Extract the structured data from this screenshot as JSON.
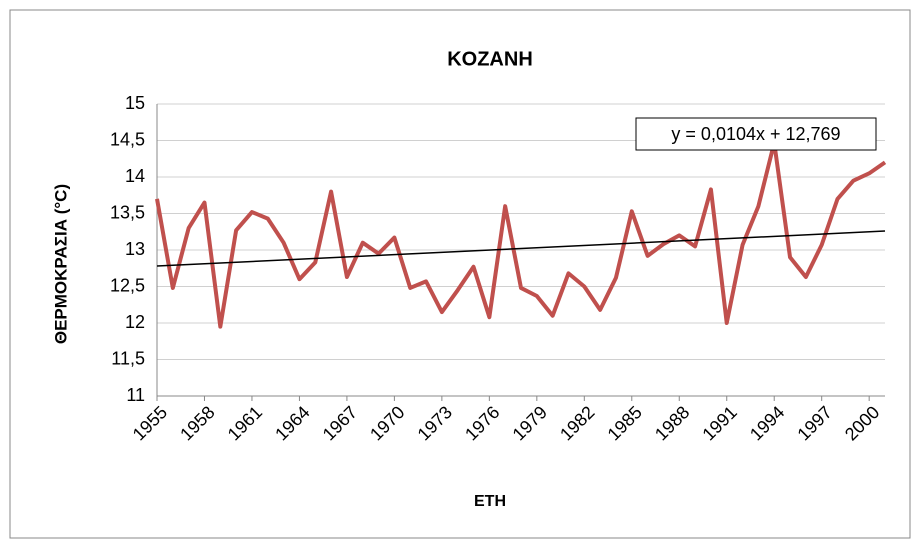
{
  "chart_data": {
    "type": "line",
    "title": "KOZANH",
    "x_label": "ETH",
    "y_label": "ΘΕΡΜΟΚΡΑΣΙΑ (°C)",
    "x": [
      1955,
      1956,
      1957,
      1958,
      1959,
      1960,
      1961,
      1962,
      1963,
      1964,
      1965,
      1966,
      1967,
      1968,
      1969,
      1970,
      1971,
      1972,
      1973,
      1974,
      1975,
      1976,
      1977,
      1978,
      1979,
      1980,
      1981,
      1982,
      1983,
      1984,
      1985,
      1986,
      1987,
      1988,
      1989,
      1990,
      1991,
      1992,
      1993,
      1994,
      1995,
      1996,
      1997,
      1998,
      1999,
      2000,
      2001
    ],
    "series": [
      {
        "name": "KOZANH",
        "color": "#c0504d",
        "values": [
          13.7,
          12.48,
          13.3,
          13.65,
          11.95,
          13.27,
          13.52,
          13.43,
          13.1,
          12.6,
          12.83,
          13.8,
          12.63,
          13.1,
          12.95,
          13.17,
          12.48,
          12.57,
          12.15,
          12.45,
          12.77,
          12.08,
          13.6,
          12.48,
          12.37,
          12.1,
          12.68,
          12.5,
          12.18,
          12.62,
          13.53,
          12.92,
          13.08,
          13.2,
          13.05,
          13.83,
          12.0,
          13.07,
          13.6,
          14.47,
          12.9,
          12.63,
          13.07,
          13.7,
          13.95,
          14.05,
          14.2
        ]
      }
    ],
    "trendline": {
      "color": "#000000",
      "x": [
        1955,
        2001
      ],
      "values": [
        12.78,
        13.26
      ],
      "equation": "y = 0,0104x + 12,769"
    },
    "xlim": [
      1955,
      2001
    ],
    "xticks": [
      1955,
      1958,
      1961,
      1964,
      1967,
      1970,
      1973,
      1976,
      1979,
      1982,
      1985,
      1988,
      1991,
      1994,
      1997,
      2000
    ],
    "ylim": [
      11,
      15
    ],
    "yticks": [
      11,
      {
        "value": 11.5,
        "label": "11,5"
      },
      12,
      {
        "value": 12.5,
        "label": "12,5"
      },
      13,
      {
        "value": 13.5,
        "label": "13,5"
      },
      14,
      {
        "value": 14.5,
        "label": "14,5"
      },
      15
    ],
    "grid": true
  }
}
